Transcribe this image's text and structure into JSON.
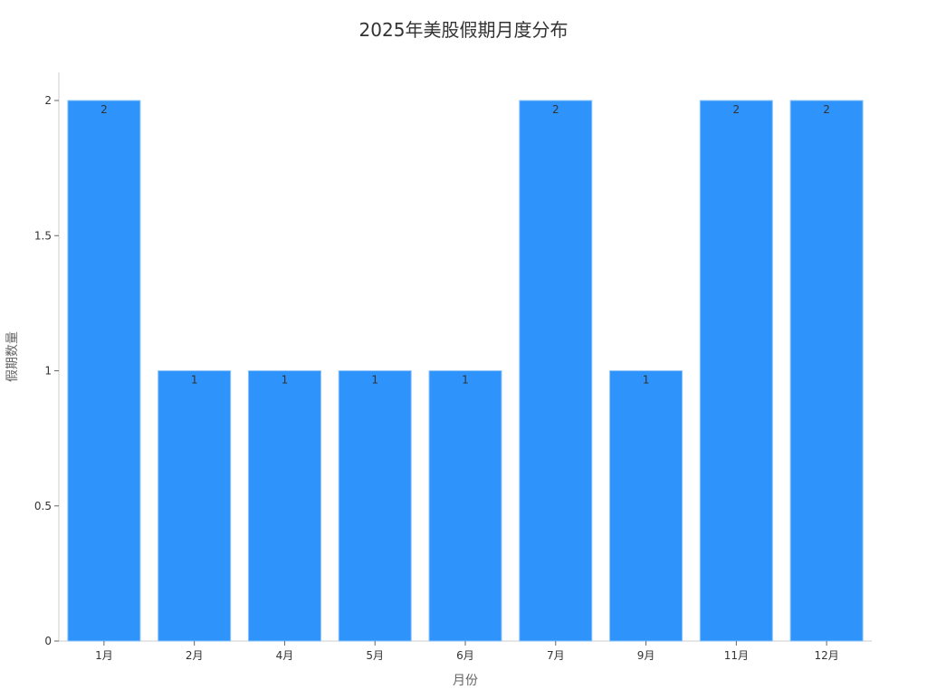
{
  "chart_data": {
    "type": "bar",
    "title": "2025年美股假期月度分布",
    "xlabel": "月份",
    "ylabel": "假期数量",
    "categories": [
      "1月",
      "2月",
      "4月",
      "5月",
      "6月",
      "7月",
      "9月",
      "11月",
      "12月"
    ],
    "values": [
      2,
      1,
      1,
      1,
      1,
      2,
      1,
      2,
      2
    ],
    "ylim": [
      0,
      2
    ],
    "yticks": [
      0,
      0.5,
      1,
      1.5,
      2
    ],
    "ytick_labels": [
      "0",
      "0.5",
      "1",
      "1.5",
      "2"
    ],
    "grid": false,
    "data_labels": true,
    "colors": {
      "bar": "#2e93fa",
      "bar_edge": "#8cc4fb",
      "axis": "#cccccc",
      "text": "#333333",
      "label": "#666666"
    }
  }
}
